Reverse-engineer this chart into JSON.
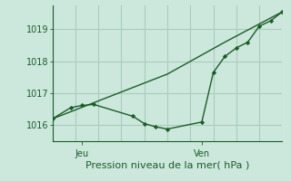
{
  "xlabel": "Pression niveau de la mer( hPa )",
  "bg_color": "#cce8dc",
  "grid_color": "#aaccbb",
  "line_color": "#1a5c28",
  "yticks": [
    1016,
    1017,
    1018,
    1019
  ],
  "ylim": [
    1015.5,
    1019.75
  ],
  "xlim": [
    0,
    10
  ],
  "jeu_x": 1.3,
  "ven_x": 6.5,
  "series1_x": [
    0.0,
    0.8,
    1.3,
    1.8,
    3.5,
    4.0,
    4.5,
    5.0,
    6.5,
    7.0,
    7.5,
    8.0,
    8.5,
    9.0,
    9.5,
    10.0
  ],
  "series1_y": [
    1016.2,
    1016.55,
    1016.62,
    1016.65,
    1016.28,
    1016.05,
    1015.95,
    1015.88,
    1016.1,
    1017.65,
    1018.15,
    1018.42,
    1018.6,
    1019.1,
    1019.27,
    1019.55
  ],
  "series2_x": [
    0.0,
    2.5,
    5.0,
    7.5,
    10.0
  ],
  "series2_y": [
    1016.2,
    1016.9,
    1017.6,
    1018.6,
    1019.55
  ],
  "xtick_positions": [
    1.3,
    6.5
  ],
  "xtick_labels": [
    "Jeu",
    "Ven"
  ]
}
